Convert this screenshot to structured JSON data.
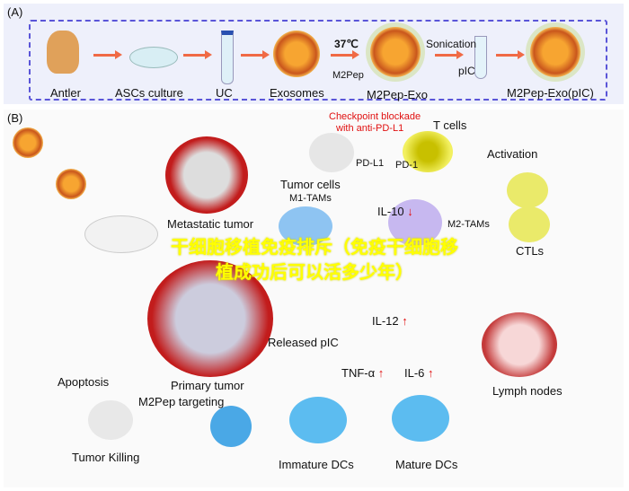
{
  "panel_a": {
    "label": "(A)",
    "steps": [
      "Antler",
      "ASCs culture",
      "UC",
      "Exosomes",
      "M2Pep-Exo",
      "M2Pep-Exo(pIC)"
    ],
    "temp": "37℃",
    "reagent1": "M2Pep",
    "process": "Sonication",
    "reagent2": "pIC"
  },
  "panel_b": {
    "label": "(B)",
    "checkpoint": "Checkpoint blockade",
    "checkpoint_sub": "with anti-PD-L1",
    "t_cells": "T cells",
    "pdl1": "PD-L1",
    "pd1": "PD-1",
    "tumor_cells": "Tumor cells",
    "metastatic": "Metastatic tumor",
    "activation": "Activation",
    "il10": "IL-10",
    "m1": "M1-TAMs",
    "m2": "M2-TAMs",
    "ctls": "CTLs",
    "il12": "IL-12",
    "released": "Released pIC",
    "primary": "Primary tumor",
    "apoptosis": "Apoptosis",
    "targeting": "M2Pep targeting",
    "tnf": "TNF-α",
    "il6": "IL-6",
    "lymph": "Lymph nodes",
    "killing": "Tumor Killing",
    "immature": "Immature DCs",
    "mature": "Mature DCs",
    "down_arrow": "↓",
    "up_arrow": "↑"
  },
  "overlay_text": "干细胞移植免疫排斥（免疫干细胞移植成功后可以活多少年）"
}
